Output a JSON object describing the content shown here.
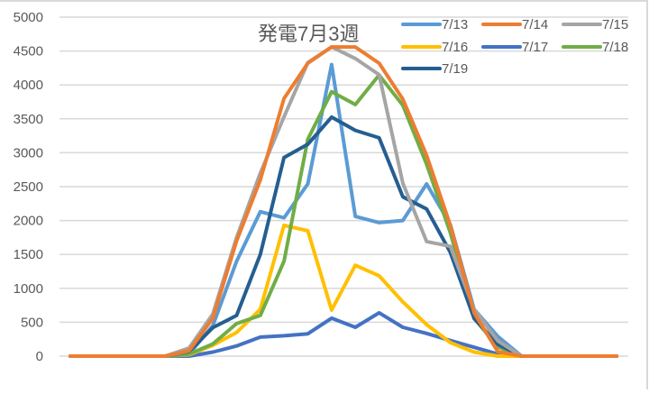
{
  "chart_data": {
    "type": "line",
    "title": "発電7月3週",
    "xlabel": "",
    "ylabel": "",
    "ylim": [
      0,
      5000
    ],
    "yticks": [
      0,
      500,
      1000,
      1500,
      2000,
      2500,
      3000,
      3500,
      4000,
      4500,
      5000
    ],
    "grid": true,
    "legend_position": "top-right",
    "x": [
      0,
      1,
      2,
      3,
      4,
      5,
      6,
      7,
      8,
      9,
      10,
      11,
      12,
      13,
      14,
      15,
      16,
      17,
      18,
      19,
      20,
      21,
      22,
      23
    ],
    "series": [
      {
        "name": "7/13",
        "color": "#5B9BD5",
        "values": [
          0,
          0,
          0,
          0,
          0,
          30,
          450,
          1400,
          2130,
          2040,
          2540,
          4300,
          2060,
          1970,
          2000,
          2540,
          1940,
          690,
          290,
          0,
          0,
          0,
          0,
          0
        ]
      },
      {
        "name": "7/14",
        "color": "#ED7D31",
        "values": [
          0,
          0,
          0,
          0,
          0,
          80,
          560,
          1700,
          2600,
          3800,
          4320,
          4560,
          4560,
          4320,
          3790,
          2960,
          1930,
          640,
          65,
          0,
          0,
          0,
          0,
          0
        ]
      },
      {
        "name": "7/15",
        "color": "#A5A5A5",
        "values": [
          0,
          0,
          0,
          0,
          0,
          120,
          620,
          1750,
          2700,
          3530,
          4330,
          4560,
          4390,
          4150,
          2550,
          1690,
          1620,
          690,
          225,
          0,
          0,
          0,
          0,
          0
        ]
      },
      {
        "name": "7/16",
        "color": "#FFC000",
        "values": [
          0,
          0,
          0,
          0,
          0,
          20,
          160,
          350,
          690,
          1930,
          1850,
          680,
          1340,
          1185,
          800,
          465,
          200,
          60,
          0,
          0,
          0,
          0,
          0,
          0
        ]
      },
      {
        "name": "7/17",
        "color": "#4472C4",
        "values": [
          0,
          0,
          0,
          0,
          0,
          0,
          60,
          150,
          280,
          300,
          330,
          560,
          425,
          640,
          425,
          335,
          230,
          130,
          30,
          0,
          0,
          0,
          0,
          0
        ]
      },
      {
        "name": "7/18",
        "color": "#70AD47",
        "values": [
          0,
          0,
          0,
          0,
          0,
          30,
          180,
          480,
          600,
          1400,
          3200,
          3900,
          3710,
          4145,
          3700,
          2830,
          1820,
          560,
          135,
          0,
          0,
          0,
          0,
          0
        ]
      },
      {
        "name": "7/19",
        "color": "#255E91",
        "values": [
          0,
          0,
          0,
          0,
          0,
          70,
          420,
          600,
          1500,
          2930,
          3125,
          3525,
          3330,
          3220,
          2350,
          2170,
          1530,
          555,
          175,
          0,
          0,
          0,
          0,
          0
        ]
      }
    ]
  },
  "legend": {
    "items": [
      {
        "label": "7/13",
        "color": "#5B9BD5"
      },
      {
        "label": "7/14",
        "color": "#ED7D31"
      },
      {
        "label": "7/15",
        "color": "#A5A5A5"
      },
      {
        "label": "7/16",
        "color": "#FFC000"
      },
      {
        "label": "7/17",
        "color": "#4472C4"
      },
      {
        "label": "7/18",
        "color": "#70AD47"
      },
      {
        "label": "7/19",
        "color": "#255E91"
      }
    ]
  },
  "colors": {
    "gridline": "#d9d9d9",
    "tick_text": "#595959",
    "border": "#d9d9d9"
  }
}
